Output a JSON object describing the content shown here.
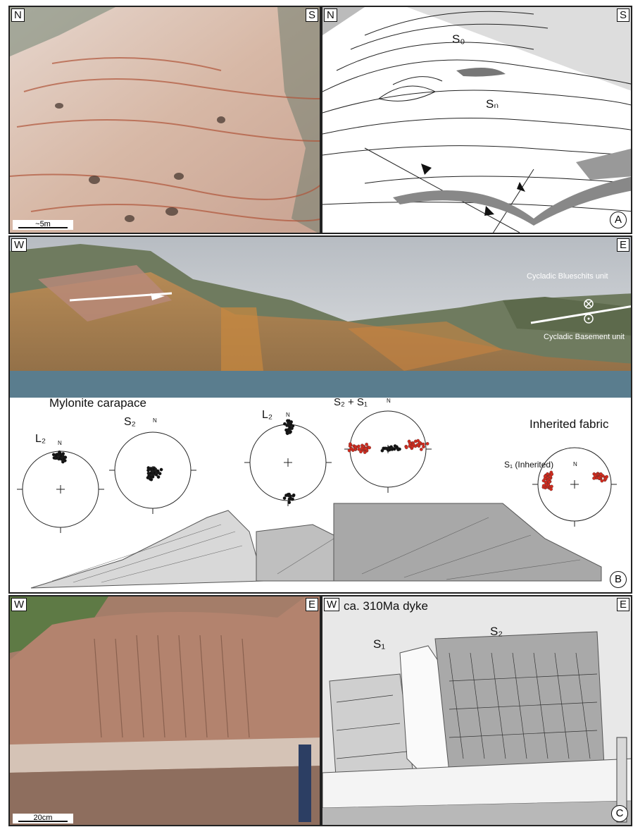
{
  "panel_a": {
    "photo": {
      "left_dir": "N",
      "right_dir": "S",
      "scale_label": "~5m"
    },
    "sketch": {
      "left_dir": "N",
      "right_dir": "S",
      "s0_label": "S₀",
      "sn_label": "Sₙ",
      "panel_letter": "A"
    }
  },
  "panel_b": {
    "panorama": {
      "left_dir": "W",
      "right_dir": "E",
      "upper_unit": "Cycladic Blueschits unit",
      "lower_unit": "Cycladic Basement unit"
    },
    "mylonite_title": "Mylonite carapace",
    "inherited_title": "Inherited fabric",
    "panel_letter": "B",
    "stereonets": [
      {
        "label": "L₂",
        "north": "N"
      },
      {
        "label": "S₂",
        "north": "N"
      },
      {
        "label": "L₂",
        "north": "N"
      },
      {
        "label": "S₂ + S₁",
        "north": "N"
      },
      {
        "label": "S₁ (Inherited)",
        "north": "N"
      }
    ]
  },
  "panel_c": {
    "photo": {
      "left_dir": "W",
      "right_dir": "E",
      "scale_label": "20cm"
    },
    "sketch": {
      "left_dir": "W",
      "right_dir": "E",
      "dyke_label": "ca. 310Ma dyke",
      "s1_label": "S₁",
      "s2_label": "S₂",
      "panel_letter": "C"
    }
  },
  "colors": {
    "black_points": "#111111",
    "red_points": "#d42b1e",
    "cliff_orange": "#c9893f",
    "sea": "#5a7d8e"
  }
}
